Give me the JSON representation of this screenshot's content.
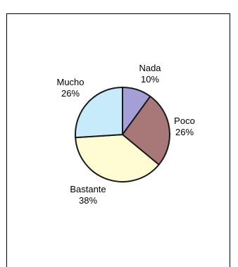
{
  "chart_data": {
    "type": "pie",
    "start_angle_deg": 0,
    "direction": "clockwise",
    "slices": [
      {
        "label": "Nada",
        "value": 10,
        "percent_label": "10%",
        "color": "#a49fd6"
      },
      {
        "label": "Poco",
        "value": 26,
        "percent_label": "26%",
        "color": "#a87878"
      },
      {
        "label": "Bastante",
        "value": 38,
        "percent_label": "38%",
        "color": "#fffcd4"
      },
      {
        "label": "Mucho",
        "value": 26,
        "percent_label": "26%",
        "color": "#c8ebfb"
      }
    ],
    "legend": "none"
  }
}
